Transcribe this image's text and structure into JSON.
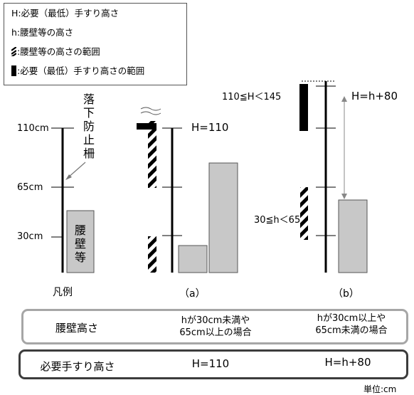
{
  "legend": {
    "H_label": "H:必要（最低）手すり高さ",
    "h_label": "h:腰壁等の高さ",
    "hatch_label": ":腰壁等の高さの範囲",
    "bar_label": ":必要（最低）手すり高さの範囲"
  },
  "levels": {
    "l110": "110cm",
    "l65": "65cm",
    "l30": "30cm"
  },
  "fall_rail_label": "落下防止柵",
  "waist_wall_label": "腰壁等",
  "case_a": {
    "caption": "（a）",
    "H_value": "H=110"
  },
  "case_b": {
    "caption": "（b）",
    "range_H": "110≦H＜145",
    "formula": "H=h+80",
    "range_h": "30≦h＜65"
  },
  "example_caption": "凡例",
  "table": {
    "row1_header": "腰壁高さ",
    "row1_a": "hが30cm未満や\n65cm以上の場合",
    "row1_b": "hが30cm以上や\n65cm未満の場合",
    "row2_header": "必要手すり高さ",
    "row2_a": "H=110",
    "row2_b": "H=h+80"
  },
  "unit": "単位:cm",
  "colors": {
    "wall_fill": "#c8c8c8",
    "wall_stroke": "#555555",
    "row1_border": "#a6a6a6",
    "row2_border": "#3c3c3c"
  }
}
